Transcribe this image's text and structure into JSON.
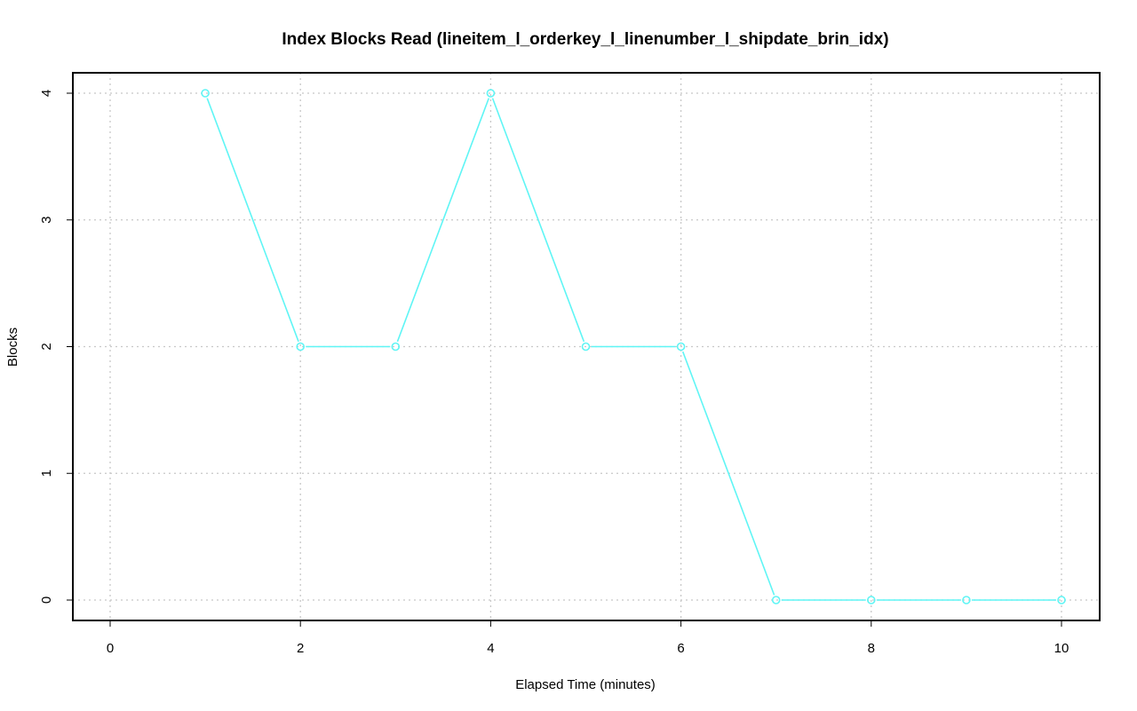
{
  "chart_data": {
    "type": "line",
    "title": "Index Blocks Read (lineitem_l_orderkey_l_linenumber_l_shipdate_brin_idx)",
    "xlabel": "Elapsed Time (minutes)",
    "ylabel": "Blocks",
    "xlim": [
      0,
      10
    ],
    "ylim": [
      0,
      4
    ],
    "xticks": [
      0,
      2,
      4,
      6,
      8,
      10
    ],
    "yticks": [
      0,
      1,
      2,
      3,
      4
    ],
    "grid": true,
    "series": [
      {
        "color": "#5ff5f5",
        "x": [
          1,
          2,
          3,
          4,
          5,
          6,
          7,
          8,
          9,
          10
        ],
        "y": [
          4,
          2,
          2,
          4,
          2,
          2,
          0,
          0,
          0,
          0
        ]
      }
    ]
  }
}
